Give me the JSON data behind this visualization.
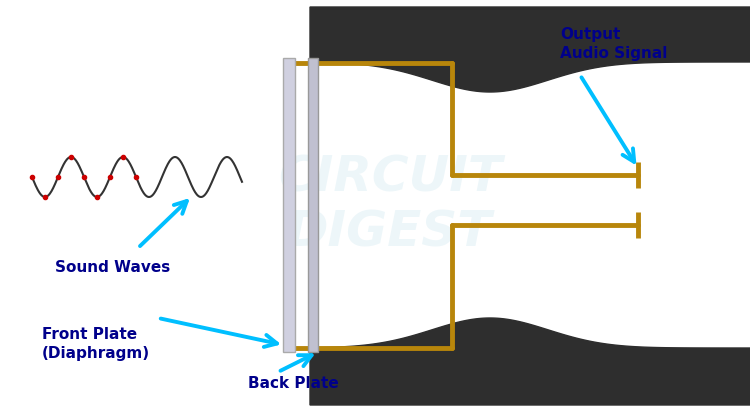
{
  "bg_color": "#ffffff",
  "dark_color": "#2e2e2e",
  "gold_color": "#B8860B",
  "plate_color_front": "#d0d0e0",
  "plate_color_back": "#c0c0d0",
  "plate_border": "#aaaaaa",
  "cyan_arrow": "#00BFFF",
  "label_color": "#00008B",
  "wave_color": "#333333",
  "wave_dot_color": "#cc0000",
  "watermark_color": "#add8e6",
  "labels": {
    "sound_waves": "Sound Waves",
    "front_plate": "Front Plate\n(Diaphragm)",
    "back_plate": "Back Plate",
    "output": "Output\nAudio Signal"
  }
}
